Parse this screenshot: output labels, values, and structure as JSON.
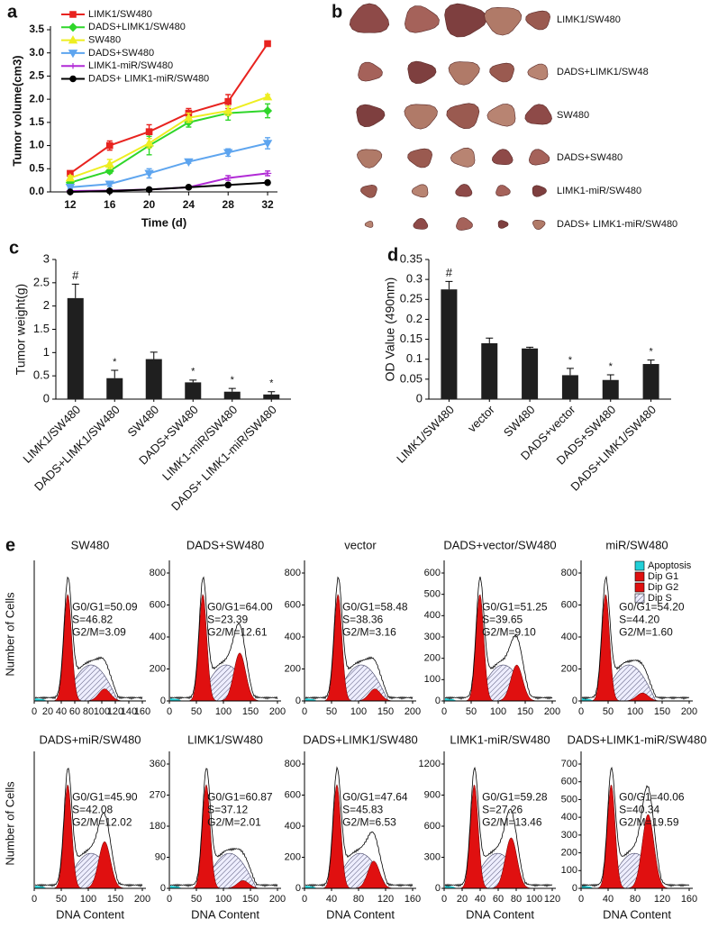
{
  "chart_data": [
    {
      "type": "line",
      "panel": "a",
      "xlabel": "Time (d)",
      "ylabel": "Tumor volume(cm3)",
      "x": [
        12,
        16,
        20,
        24,
        28,
        32
      ],
      "xlim": [
        10,
        33
      ],
      "xticks": [
        12,
        16,
        20,
        24,
        28,
        32
      ],
      "ylim": [
        0,
        3.5
      ],
      "yticks": [
        {
          "value": 0,
          "label": "0.0"
        },
        0.5,
        {
          "value": 1,
          "label": "1.0"
        },
        1.5,
        {
          "value": 2,
          "label": "2.0"
        },
        2.5,
        {
          "value": 3,
          "label": "3.0"
        },
        3.5
      ],
      "series": [
        {
          "name": "LIMK1/SW480",
          "color": "#e8231f",
          "values": [
            0.4,
            1.0,
            1.3,
            1.7,
            1.95,
            3.2
          ],
          "errors": [
            0.05,
            0.1,
            0.15,
            0.1,
            0.15,
            0.05
          ]
        },
        {
          "name": "DADS+LIMK1/SW480",
          "color": "#2fd62a",
          "values": [
            0.2,
            0.45,
            1.0,
            1.5,
            1.7,
            1.75
          ],
          "errors": [
            0.05,
            0.05,
            0.2,
            0.1,
            0.15,
            0.15
          ]
        },
        {
          "name": "SW480",
          "color": "#eeee22",
          "values": [
            0.3,
            0.6,
            1.05,
            1.6,
            1.75,
            2.05
          ],
          "errors": [
            0.05,
            0.1,
            0.1,
            0.1,
            0.1,
            0.05
          ]
        },
        {
          "name": "DADS+SW480",
          "color": "#5ea5ef",
          "values": [
            0.1,
            0.17,
            0.4,
            0.65,
            0.85,
            1.05
          ],
          "errors": [
            0.03,
            0.05,
            0.1,
            0.03,
            0.08,
            0.12
          ]
        },
        {
          "name": "LIMK1-miR/SW480",
          "color": "#b12bd6",
          "values": [
            0.02,
            0.03,
            0.05,
            0.1,
            0.3,
            0.4
          ],
          "errors": [
            0.01,
            0.01,
            0.02,
            0.02,
            0.05,
            0.05
          ]
        },
        {
          "name": "DADS+ LIMK1-miR/SW480",
          "color": "#000000",
          "values": [
            0,
            0.02,
            0.05,
            0.1,
            0.15,
            0.2
          ],
          "errors": [
            0.01,
            0.01,
            0.01,
            0.02,
            0.02,
            0.02
          ]
        }
      ]
    },
    {
      "type": "bar",
      "panel": "c",
      "ylabel": "Tumor weight(g)",
      "color": "#1f1f1f",
      "categories": [
        "LIMK1/SW480",
        "DADS+LIMK1/SW480",
        "SW480",
        "DADS+SW480",
        "LIMK1-miR/SW480",
        "DADS+ LIMK1-miR/SW480"
      ],
      "values": [
        2.17,
        0.45,
        0.86,
        0.36,
        0.16,
        0.1
      ],
      "errors": [
        0.3,
        0.17,
        0.15,
        0.05,
        0.07,
        0.06
      ],
      "annotations": [
        "#",
        "*",
        null,
        "*",
        "*",
        "*"
      ],
      "ylim": [
        0,
        3
      ],
      "yticks": [
        0,
        0.5,
        1,
        1.5,
        2,
        2.5,
        3
      ]
    },
    {
      "type": "bar",
      "panel": "d",
      "ylabel": "OD Value (490nm)",
      "color": "#1f1f1f",
      "categories": [
        "LIMK1/SW480",
        "vector",
        "SW480",
        "DADS+vector",
        "DADS+SW480",
        "DADS+LIMK1/SW480"
      ],
      "values": [
        0.275,
        0.14,
        0.127,
        0.06,
        0.048,
        0.088
      ],
      "errors": [
        0.02,
        0.013,
        0.003,
        0.017,
        0.013,
        0.01
      ],
      "annotations": [
        "#",
        null,
        null,
        "*",
        "*",
        "*"
      ],
      "ylim": [
        0,
        0.35
      ],
      "yticks": [
        0,
        0.05,
        0.1,
        0.15,
        0.2,
        0.25,
        0.3,
        0.35
      ]
    }
  ],
  "photo": {
    "panel": "b",
    "labels": [
      "LIMK1/SW480",
      "DADS+LIMK1/SW48",
      "SW480",
      "DADS+SW480",
      "LIMK1-miR/SW480",
      "DADS+ LIMK1-miR/SW480"
    ]
  },
  "flow": {
    "panel": "e",
    "ylabel": "Number of Cells",
    "xlabel": "DNA Content",
    "legend": [
      "Apoptosis",
      "Dip G1",
      "Dip G2",
      "Dip S"
    ],
    "plots": [
      {
        "title": "SW480",
        "stats": [
          "G0/G1=50.09",
          "S=46.82",
          "G2/M=3.09"
        ],
        "xticks": [
          0,
          20,
          40,
          60,
          80,
          100,
          120,
          140,
          160
        ]
      },
      {
        "title": "DADS+SW480",
        "stats": [
          "G0/G1=64.00",
          "S=23.39",
          "G2/M=12.61"
        ],
        "xticks": [
          0,
          50,
          100,
          150,
          200
        ],
        "yticks": [
          0,
          200,
          400,
          600,
          800
        ]
      },
      {
        "title": "vector",
        "stats": [
          "G0/G1=58.48",
          "S=38.36",
          "G2/M=3.16"
        ],
        "xticks": [
          0,
          50,
          100,
          150,
          200
        ],
        "yticks": [
          0,
          200,
          400,
          600,
          800
        ]
      },
      {
        "title": "DADS+vector/SW480",
        "stats": [
          "G0/G1=51.25",
          "S=39.65",
          "G2/M=9.10"
        ],
        "xticks": [
          0,
          50,
          100,
          150,
          200
        ],
        "yticks": [
          0,
          100,
          200,
          300,
          400,
          500,
          600
        ]
      },
      {
        "title": "miR/SW480",
        "stats": [
          "G0/G1=54.20",
          "S=44.20",
          "G2/M=1.60"
        ],
        "xticks": [
          0,
          50,
          100,
          150,
          200
        ],
        "yticks": [
          0,
          200,
          400,
          600,
          800
        ]
      },
      {
        "title": "DADS+miR/SW480",
        "stats": [
          "G0/G1=45.90",
          "S=42.08",
          "G2/M=12.02"
        ],
        "xticks": [
          0,
          50,
          100,
          150,
          200
        ]
      },
      {
        "title": "LIMK1/SW480",
        "stats": [
          "G0/G1=60.87",
          "S=37.12",
          "G2/M=2.01"
        ],
        "xticks": [
          0,
          50,
          100,
          150,
          200
        ],
        "yticks": [
          0,
          90,
          180,
          270,
          360
        ]
      },
      {
        "title": "DADS+LIMK1/SW480",
        "stats": [
          "G0/G1=47.64",
          "S=45.83",
          "G2/M=6.53"
        ],
        "xticks": [
          0,
          40,
          80,
          120,
          160
        ],
        "yticks": [
          0,
          200,
          400,
          600,
          800
        ]
      },
      {
        "title": "LIMK1-miR/SW480",
        "stats": [
          "G0/G1=59.28",
          "S=27.26",
          "G2/M=13.46"
        ],
        "xticks": [
          0,
          20,
          40,
          60,
          80,
          100,
          120
        ],
        "yticks": [
          0,
          300,
          600,
          900,
          1200
        ]
      },
      {
        "title": "DADS+LIMK1-miR/SW480",
        "stats": [
          "G0/G1=40.06",
          "S=40.34",
          "G2/M=19.59"
        ],
        "xticks": [
          0,
          40,
          80,
          120,
          160
        ],
        "yticks": [
          0,
          100,
          200,
          300,
          400,
          500,
          600,
          700
        ]
      }
    ]
  }
}
